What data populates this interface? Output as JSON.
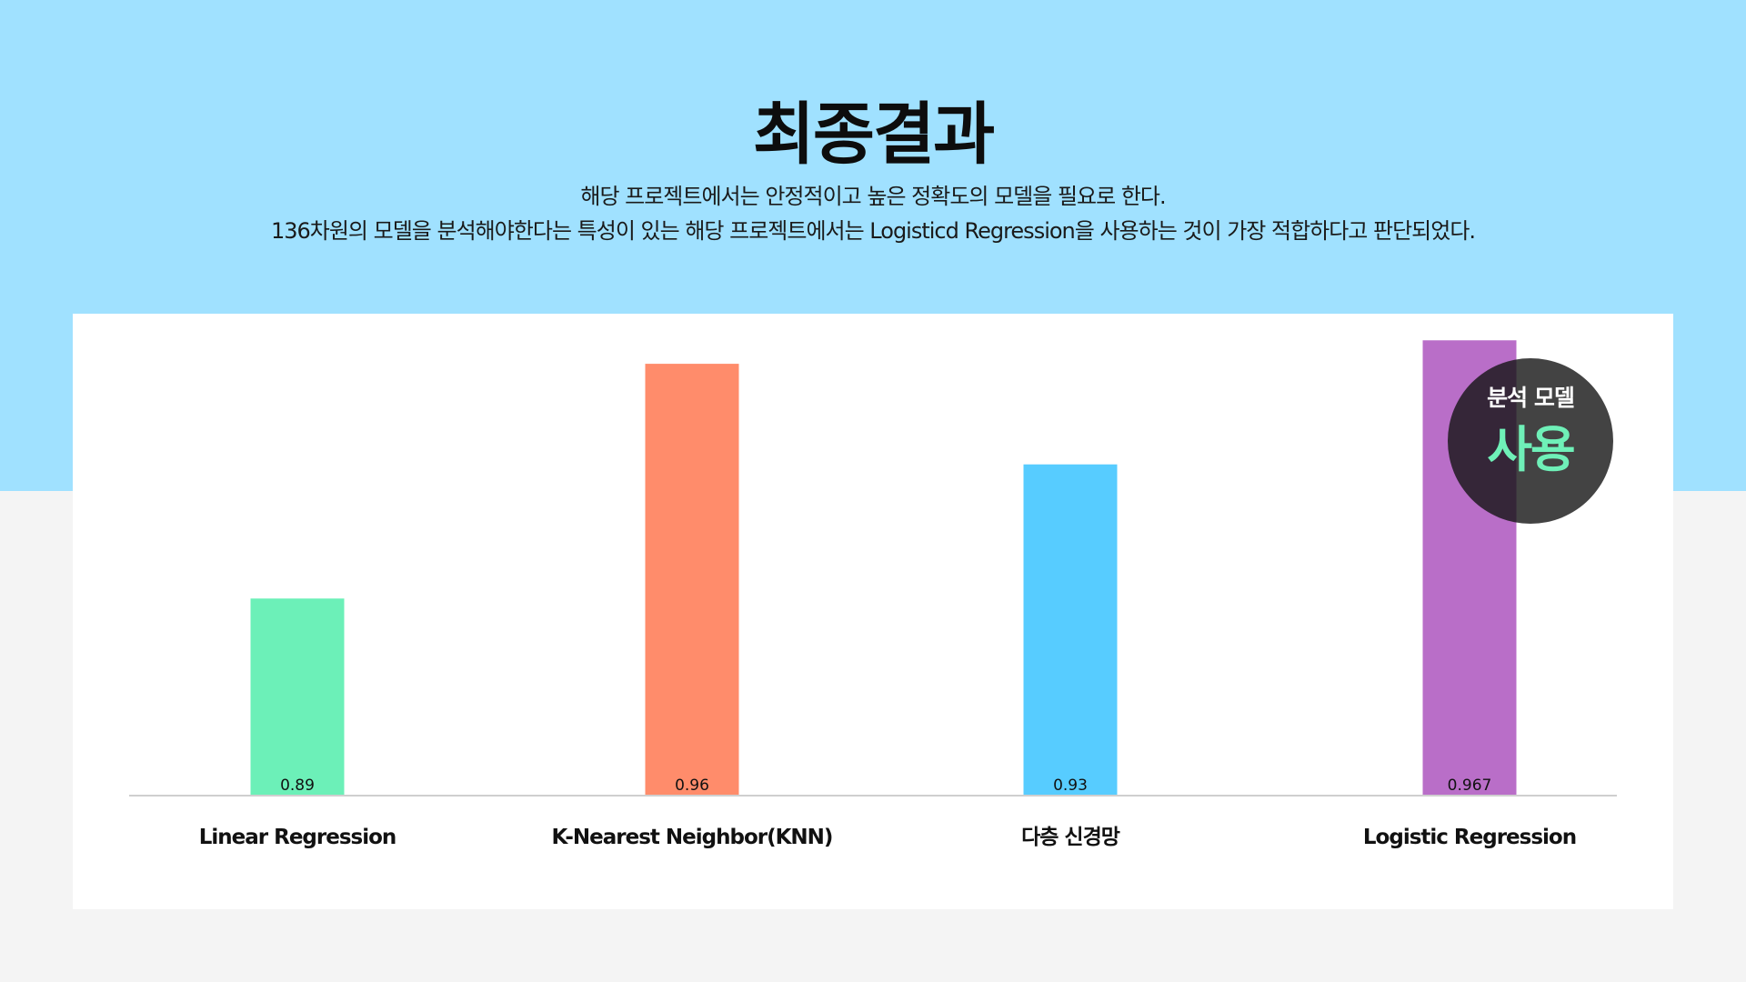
{
  "page": {
    "title": "최종결과",
    "description_line1": "해당 프로젝트에서는 안정적이고 높은 정확도의 모델을 필요로 한다.",
    "description_line2": "136차원의 모델을 분석해야한다는 특성이 있는 해당 프로젝트에서는 Logisticd Regression을 사용하는 것이 가장 적합하다고 판단되었다.",
    "colors": {
      "top_band": "#a0e1ff",
      "background": "#f4f4f4",
      "panel": "#ffffff",
      "badge_accent": "#6ff0b8"
    }
  },
  "badge": {
    "line1": "분석 모델",
    "line2": "사용",
    "highlighted_model": "Logistic Regression"
  },
  "chart_data": {
    "type": "bar",
    "categories": [
      "Linear Regression",
      "K-Nearest Neighbor(KNN)",
      "다층 신경망",
      "Logistic Regression"
    ],
    "values": [
      0.89,
      0.96,
      0.93,
      0.967
    ],
    "value_labels": [
      "0.89",
      "0.96",
      "0.93",
      "0.967"
    ],
    "colors": [
      "#6cf0b8",
      "#ff8c6b",
      "#57ccff",
      "#b96ec8"
    ],
    "grid": false,
    "legend": "none"
  }
}
